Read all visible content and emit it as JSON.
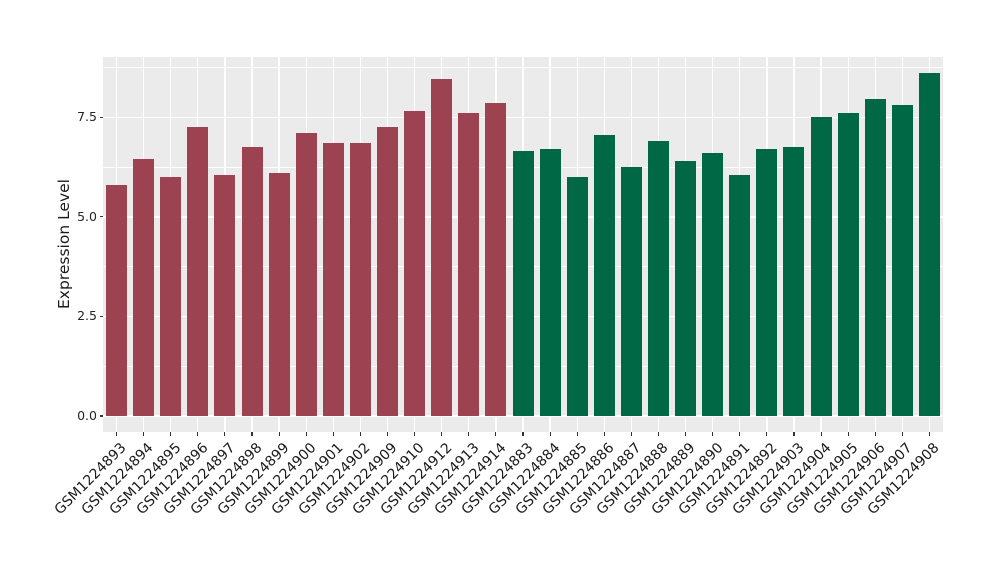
{
  "figure": {
    "background_color": "#FFFFFF",
    "panel_background_color": "#EBEBEB",
    "grid_color": "#FFFFFF",
    "tick_color": "#333333",
    "axis_text_color": "#262626"
  },
  "chart_data": {
    "type": "bar",
    "title": "",
    "xlabel": "",
    "ylabel": "Expression Level",
    "ylim": [
      0,
      9.05
    ],
    "yticks": [
      0.0,
      2.5,
      5.0,
      7.5
    ],
    "ytick_labels": [
      "0.0",
      "2.5",
      "5.0",
      "7.5"
    ],
    "grid": true,
    "legend_position": "none",
    "x_label_rotation_deg": 45,
    "categories": [
      "GSM1224893",
      "GSM1224894",
      "GSM1224895",
      "GSM1224896",
      "GSM1224897",
      "GSM1224898",
      "GSM1224899",
      "GSM1224900",
      "GSM1224901",
      "GSM1224902",
      "GSM1224909",
      "GSM1224910",
      "GSM1224912",
      "GSM1224913",
      "GSM1224914",
      "GSM1224883",
      "GSM1224884",
      "GSM1224885",
      "GSM1224886",
      "GSM1224887",
      "GSM1224888",
      "GSM1224889",
      "GSM1224890",
      "GSM1224891",
      "GSM1224892",
      "GSM1224903",
      "GSM1224904",
      "GSM1224905",
      "GSM1224906",
      "GSM1224907",
      "GSM1224908"
    ],
    "values": [
      5.8,
      6.45,
      6.0,
      7.25,
      6.05,
      6.75,
      6.1,
      7.1,
      6.85,
      6.85,
      7.25,
      7.65,
      8.45,
      7.6,
      7.85,
      6.65,
      6.7,
      6.0,
      7.05,
      6.25,
      6.9,
      6.4,
      6.6,
      6.05,
      6.7,
      6.75,
      7.5,
      7.6,
      7.95,
      7.8,
      8.6
    ],
    "groups": [
      "group1",
      "group1",
      "group1",
      "group1",
      "group1",
      "group1",
      "group1",
      "group1",
      "group1",
      "group1",
      "group1",
      "group1",
      "group1",
      "group1",
      "group1",
      "group2",
      "group2",
      "group2",
      "group2",
      "group2",
      "group2",
      "group2",
      "group2",
      "group2",
      "group2",
      "group2",
      "group2",
      "group2",
      "group2",
      "group2",
      "group2"
    ],
    "group_colors": {
      "group1": "#9D4250",
      "group2": "#006845"
    }
  }
}
